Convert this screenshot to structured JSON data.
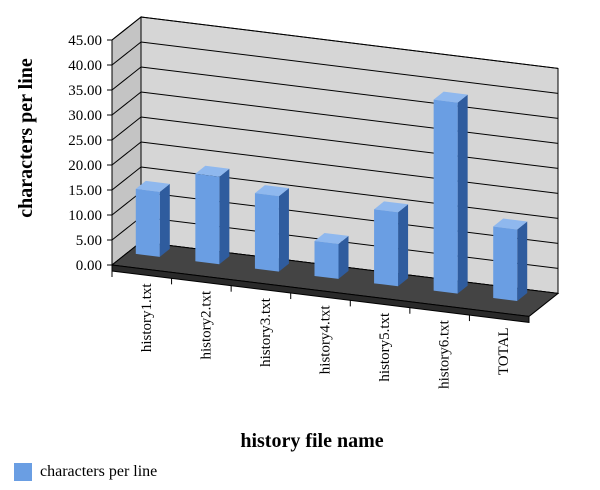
{
  "chart_data": {
    "type": "bar",
    "categories": [
      "history1.txt",
      "history2.txt",
      "history3.txt",
      "history4.txt",
      "history5.txt",
      "history6.txt",
      "TOTAL"
    ],
    "series": [
      {
        "name": "characters per line",
        "values": [
          13.0,
          17.5,
          15.1,
          7.0,
          14.8,
          38.2,
          14.3
        ],
        "color": "#6a9ee3"
      }
    ],
    "xlabel": "history file name",
    "ylabel": "characters per line",
    "ylim": [
      0,
      45
    ],
    "yticks": [
      "0.00",
      "5.00",
      "10.00",
      "15.00",
      "20.00",
      "25.00",
      "30.00",
      "35.00",
      "40.00",
      "45.00"
    ],
    "grid": true,
    "legend_position": "bottom-left",
    "style": "3d-column"
  }
}
